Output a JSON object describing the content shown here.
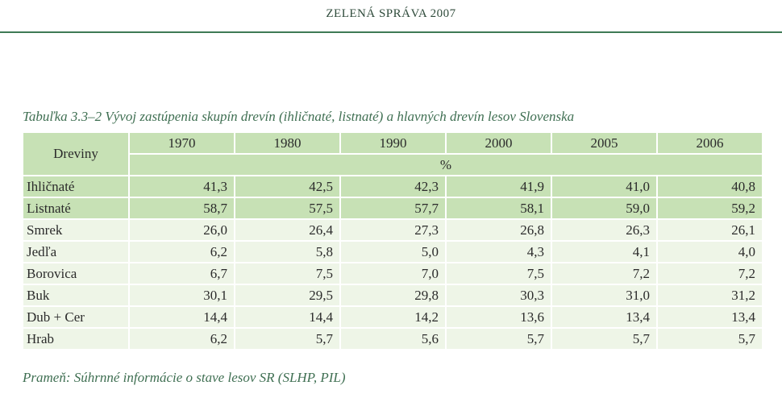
{
  "header": {
    "title": "ZELENÁ SPRÁVA 2007"
  },
  "table": {
    "caption": "Tabuľka 3.3–2 Vývoj zastúpenia skupín drevín (ihličnaté, listnaté) a hlavných drevín lesov Slovenska",
    "corner_label": "Dreviny",
    "years": [
      "1970",
      "1980",
      "1990",
      "2000",
      "2005",
      "2006"
    ],
    "unit": "%",
    "rows": [
      {
        "label": "Ihličnaté",
        "values": [
          "41,3",
          "42,5",
          "42,3",
          "41,9",
          "41,0",
          "40,8"
        ]
      },
      {
        "label": "Listnaté",
        "values": [
          "58,7",
          "57,5",
          "57,7",
          "58,1",
          "59,0",
          "59,2"
        ]
      },
      {
        "label": "Smrek",
        "values": [
          "26,0",
          "26,4",
          "27,3",
          "26,8",
          "26,3",
          "26,1"
        ]
      },
      {
        "label": "Jedľa",
        "values": [
          "6,2",
          "5,8",
          "5,0",
          "4,3",
          "4,1",
          "4,0"
        ]
      },
      {
        "label": "Borovica",
        "values": [
          "6,7",
          "7,5",
          "7,0",
          "7,5",
          "7,2",
          "7,2"
        ]
      },
      {
        "label": "Buk",
        "values": [
          "30,1",
          "29,5",
          "29,8",
          "30,3",
          "31,0",
          "31,2"
        ]
      },
      {
        "label": "Dub + Cer",
        "values": [
          "14,4",
          "14,4",
          "14,2",
          "13,6",
          "13,4",
          "13,4"
        ]
      },
      {
        "label": "Hrab",
        "values": [
          "6,2",
          "5,7",
          "5,6",
          "5,7",
          "5,7",
          "5,7"
        ]
      }
    ],
    "source": "Prameň: Súhrnné informácie o stave lesov SR (SLHP, PIL)"
  },
  "colors": {
    "header_rule": "#3f7a55",
    "header_cell": "#c7e1b5",
    "plain_cell": "#eef5e7",
    "caption_text": "#3f6f52"
  }
}
